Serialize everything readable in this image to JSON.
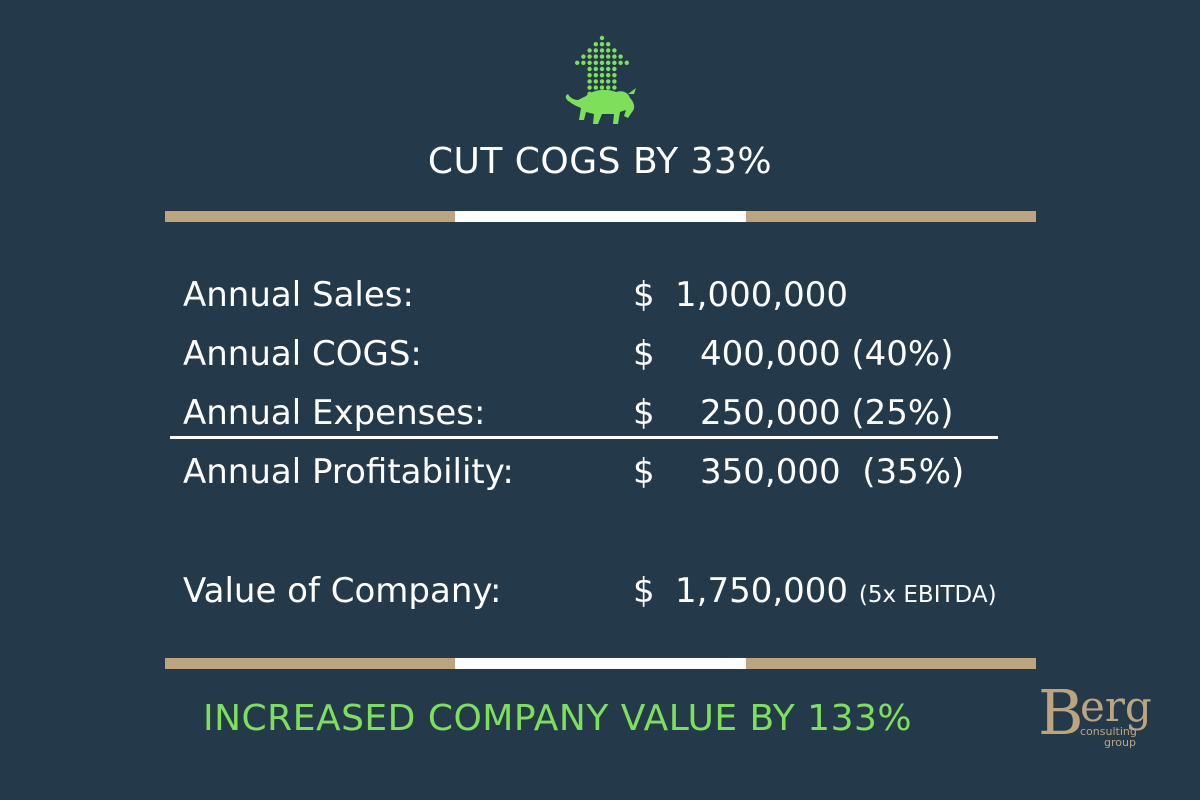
{
  "colors": {
    "background": "#243a4b",
    "text": "#ffffff",
    "accent_green": "#7ee05a",
    "gold": "#bca57e",
    "white": "#ffffff"
  },
  "top_logo": {
    "icon": "bull-arrow-icon"
  },
  "headline": "CUT COGS BY 33%",
  "rows": [
    {
      "label": "Annual Sales:",
      "dollar": "$",
      "amount": "1,000,000"
    },
    {
      "label": "Annual COGS:",
      "dollar": "$",
      "amount": "400,000 (40%)"
    },
    {
      "label": "Annual Expenses:",
      "dollar": "$",
      "amount": "250,000 (25%)"
    },
    {
      "label": "Annual Profitability:",
      "dollar": "$",
      "amount": "350,000  (35%)"
    }
  ],
  "value": {
    "label": "Value of Company:",
    "dollar": "$",
    "amount": "1,750,000",
    "note": "(5x EBITDA)"
  },
  "conclusion": "INCREASED COMPANY VALUE BY 133%",
  "brand": {
    "initial": "B",
    "rest": "erg",
    "line1": "consulting",
    "line2": "group"
  }
}
